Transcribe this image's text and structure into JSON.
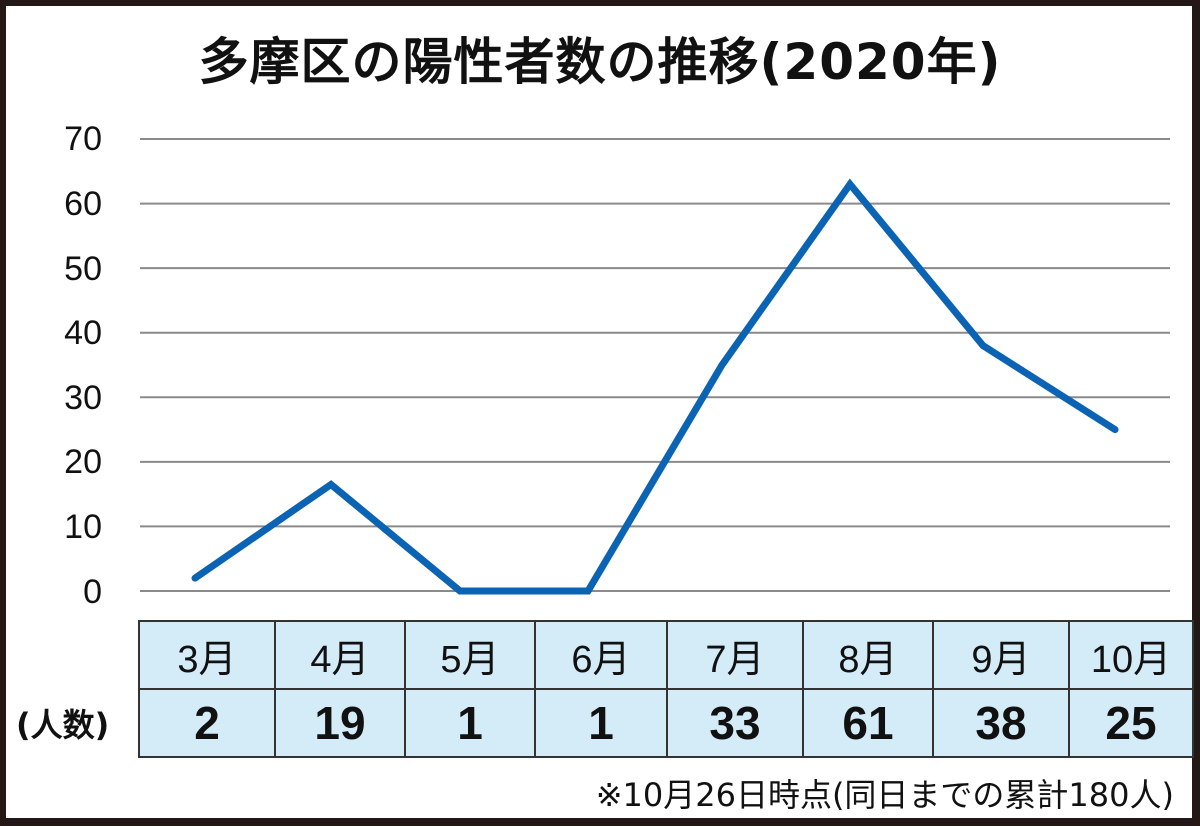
{
  "title": "多摩区の陽性者数の推移(2020年)",
  "row_label": "(人数)",
  "footnote": "※10月26日時点(同日までの累計180人)",
  "colors": {
    "line": "#0b63b4",
    "grid": "#8a8a8a",
    "table_bg": "#d4ebf8",
    "border": "#231815"
  },
  "y_ticks": [
    "70",
    "60",
    "50",
    "40",
    "30",
    "20",
    "10",
    "0"
  ],
  "table": {
    "months": [
      "3月",
      "4月",
      "5月",
      "6月",
      "7月",
      "8月",
      "9月",
      "10月"
    ],
    "values": [
      "2",
      "19",
      "1",
      "1",
      "33",
      "61",
      "38",
      "25"
    ]
  },
  "chart_data": {
    "type": "line",
    "title": "多摩区の陽性者数の推移(2020年)",
    "xlabel": "",
    "ylabel": "(人数)",
    "categories": [
      "3月",
      "4月",
      "5月",
      "6月",
      "7月",
      "8月",
      "9月",
      "10月"
    ],
    "series": [
      {
        "name": "陽性者数",
        "values": [
          2,
          19,
          1,
          1,
          33,
          61,
          38,
          25
        ]
      }
    ],
    "plotted_values_approx": [
      2,
      16.5,
      0,
      0,
      35,
      63,
      38,
      25
    ],
    "ylim": [
      0,
      70
    ],
    "yticks": [
      0,
      10,
      20,
      30,
      40,
      50,
      60,
      70
    ],
    "grid": true,
    "legend": "none",
    "note": "※10月26日時点(同日までの累計180人)"
  }
}
